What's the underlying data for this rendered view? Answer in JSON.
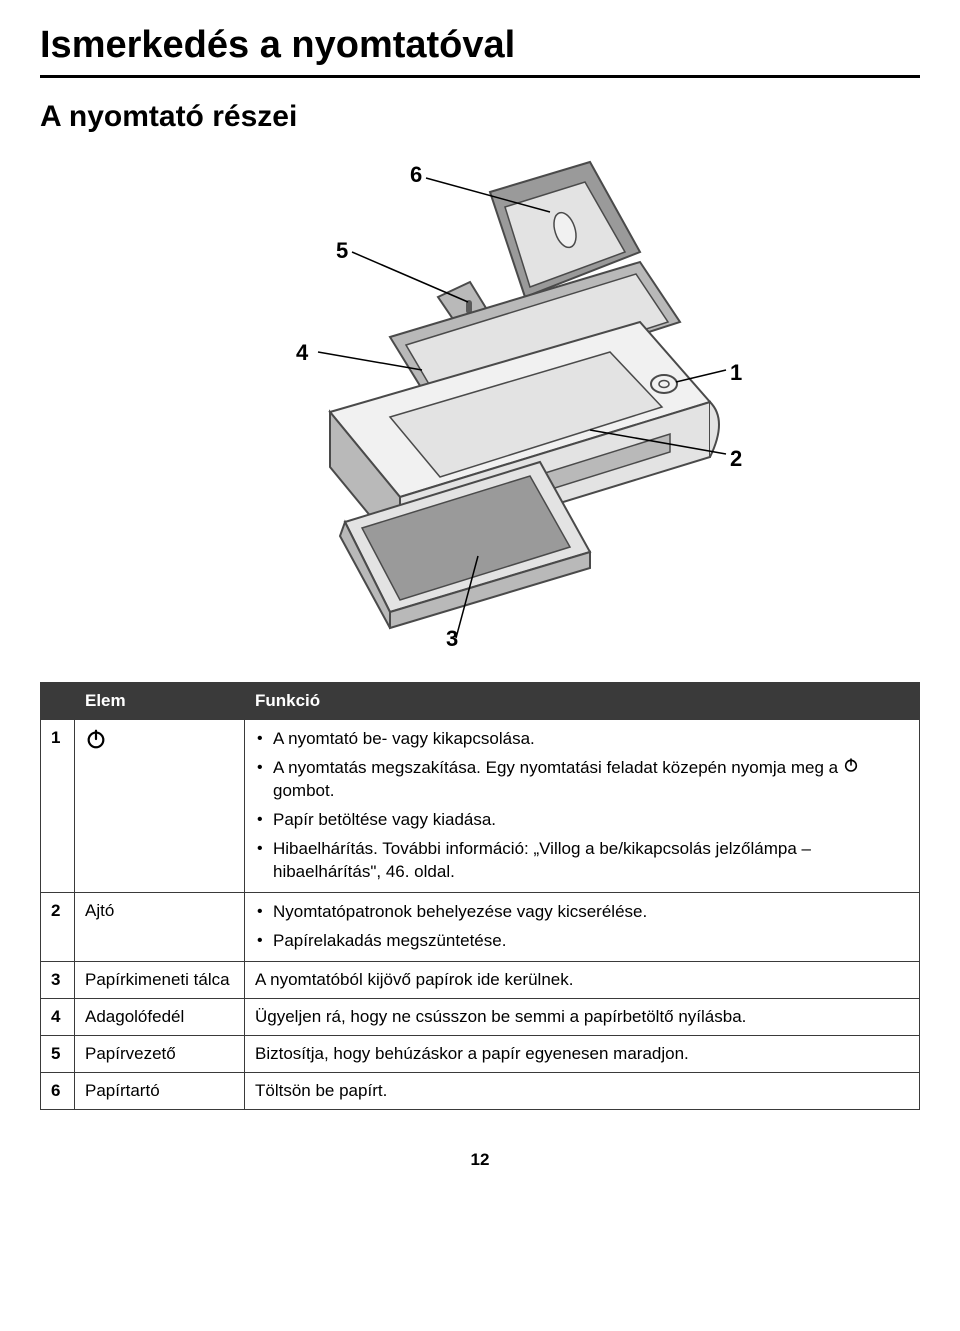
{
  "title": "Ismerkedés a nyomtatóval",
  "section": "A nyomtató részei",
  "callouts": {
    "1": "1",
    "2": "2",
    "3": "3",
    "4": "4",
    "5": "5",
    "6": "6"
  },
  "diagram": {
    "body_fill": "#e3e3e3",
    "body_dark": "#b9b9b9",
    "line": "#4a4a4a",
    "tray_fill": "#9a9a9a",
    "paper_fill": "#f1f1f1"
  },
  "table": {
    "headers": {
      "num": "",
      "item": "Elem",
      "func": "Funkció"
    },
    "header_bg": "#3a3a3a",
    "header_color": "#ffffff",
    "border_color": "#3a3a3a",
    "rows": [
      {
        "num": "1",
        "item_type": "power-icon",
        "func_type": "list",
        "func_list": [
          "A nyomtató be- vagy kikapcsolása.",
          "A nyomtatás megszakítása. Egy nyomtatási feladat közepén nyomja meg a ⏻ gombot.",
          "Papír betöltése vagy kiadása.",
          "Hibaelhárítás. További információ: „Villog a be/kikapcsolás jelzőlámpa – hibaelhárítás\", 46. oldal."
        ]
      },
      {
        "num": "2",
        "item": "Ajtó",
        "func_type": "list",
        "func_list": [
          "Nyomtatópatronok behelyezése vagy kicserélése.",
          "Papírelakadás megszüntetése."
        ]
      },
      {
        "num": "3",
        "item": "Papírkimeneti tálca",
        "func": "A nyomtatóból kijövő papírok ide kerülnek."
      },
      {
        "num": "4",
        "item": "Adagolófedél",
        "func": "Ügyeljen rá, hogy ne csússzon be semmi a papírbetöltő nyílásba."
      },
      {
        "num": "5",
        "item": "Papírvezető",
        "func": "Biztosítja, hogy behúzáskor a papír egyenesen maradjon."
      },
      {
        "num": "6",
        "item": "Papírtartó",
        "func": "Töltsön be papírt."
      }
    ]
  },
  "page_number": "12"
}
